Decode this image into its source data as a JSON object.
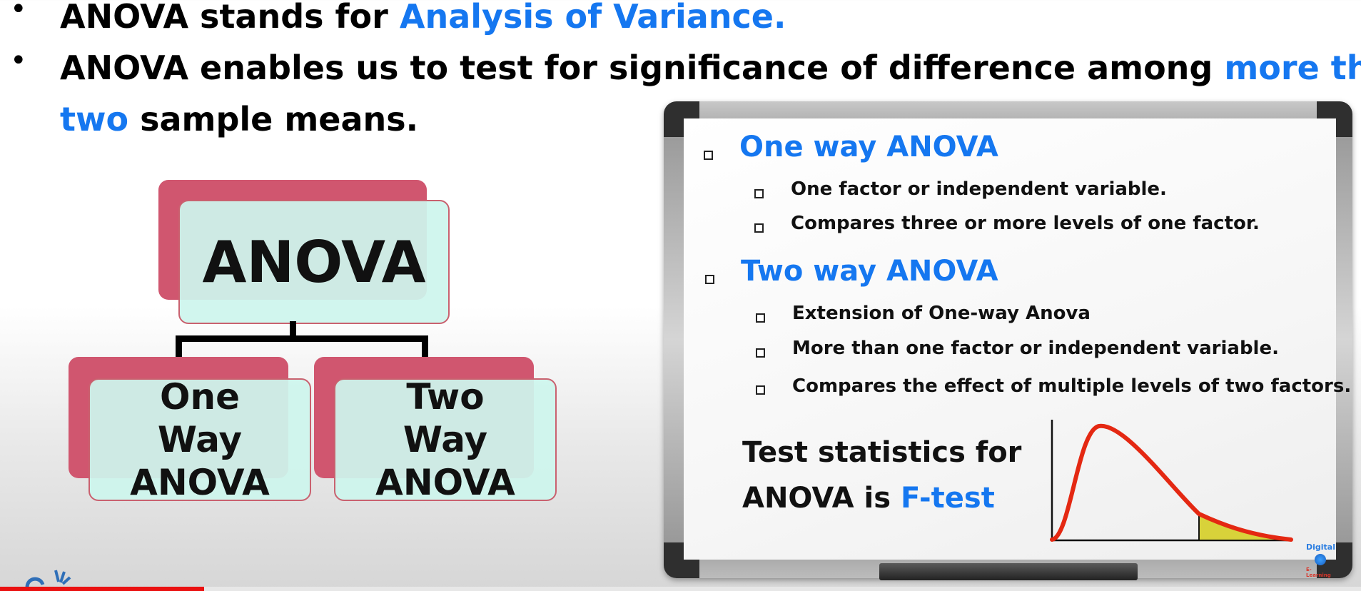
{
  "bullets": {
    "line1_prefix": "ANOVA stands for ",
    "line1_highlight": "Analysis of Variance.",
    "line2_prefix": "ANOVA enables us to test for significance of difference among ",
    "line2_highlight": "more than",
    "line3_highlight": "two",
    "line3_suffix": " sample means.",
    "dot": "•"
  },
  "diagram": {
    "root": "ANOVA",
    "left_child": "One Way ANOVA",
    "right_child": "Two Way ANOVA"
  },
  "whiteboard": {
    "one_way_heading": "One way ANOVA",
    "one_way_items": [
      "One factor or independent variable.",
      "Compares three or more levels of one factor."
    ],
    "two_way_heading": "Two way ANOVA",
    "two_way_items": [
      "Extension of One-way Anova",
      "More than one factor or independent variable.",
      "Compares the effect of multiple levels of two factors."
    ],
    "test_line1": "Test statistics for",
    "test_line2_prefix": "ANOVA is ",
    "test_line2_highlight": "F-test"
  },
  "colors": {
    "accent_blue": "#1577f0",
    "box_pink": "#d0566f",
    "box_mint": "#cef5ed",
    "curve_red": "#e42812",
    "tail_yellow": "#d8d23a"
  },
  "video_progress_fraction": 0.15
}
